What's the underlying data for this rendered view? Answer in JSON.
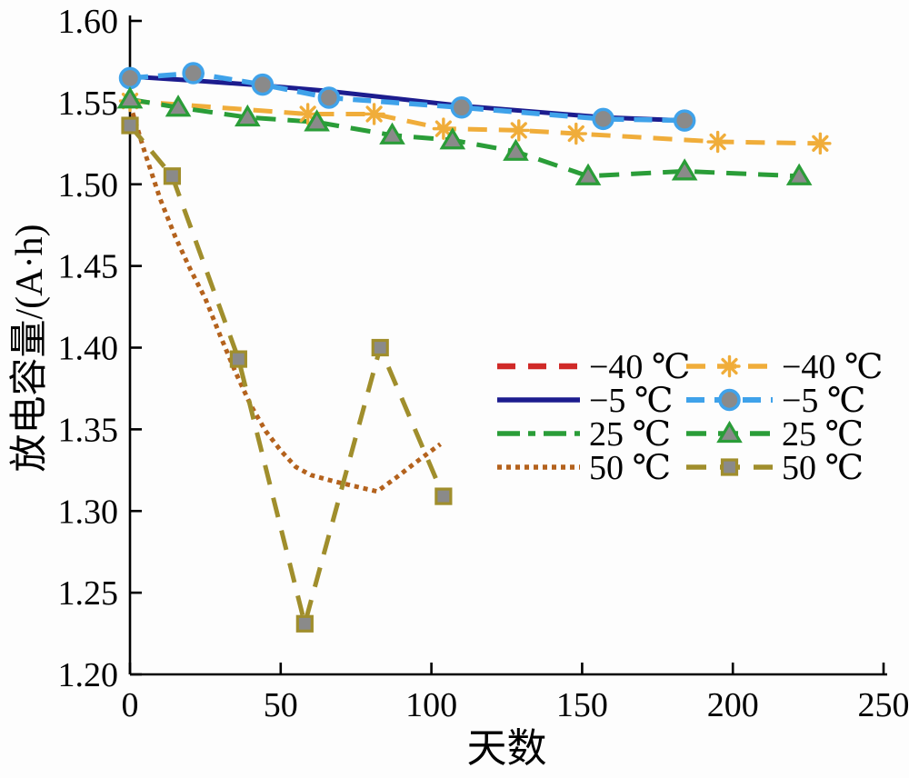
{
  "figure": {
    "kind": "scientific-line-chart",
    "background": "#fdfdfd"
  },
  "chart_data": {
    "type": "line",
    "title": "",
    "xlabel": "天数",
    "ylabel": "放电容量/(A·h)",
    "xlim": [
      0,
      250
    ],
    "ylim": [
      1.2,
      1.6
    ],
    "x_ticks": [
      0,
      50,
      100,
      150,
      200,
      250
    ],
    "x_tick_labels": [
      "0",
      "50",
      "100",
      "150",
      "200",
      "250"
    ],
    "y_ticks": [
      1.2,
      1.25,
      1.3,
      1.35,
      1.4,
      1.45,
      1.5,
      1.55,
      1.6
    ],
    "y_tick_labels": [
      "1.20",
      "1.25",
      "1.30",
      "1.35",
      "1.40",
      "1.45",
      "1.50",
      "1.55",
      "1.60"
    ],
    "grid": false,
    "legend_position": "inside middle-right, two columns, no frame",
    "marker_fill": "#8a8a8a",
    "axis_color": "#000000",
    "series": [
      {
        "id": "fit-minus40",
        "label": "−40 ℃",
        "color": "#d02a28",
        "line_style": "dashed",
        "dash": [
          20,
          14
        ],
        "width": 6,
        "marker": "none",
        "legend_col": 0,
        "legend_row": 0,
        "plotted": false,
        "x": [],
        "y": []
      },
      {
        "id": "fit-minus5",
        "label": "−5 ℃",
        "color": "#1c1c8e",
        "line_style": "solid",
        "dash": [],
        "width": 5,
        "marker": "none",
        "legend_col": 0,
        "legend_row": 1,
        "plotted": true,
        "x": [
          0,
          21,
          44,
          66,
          110,
          157,
          184
        ],
        "y": [
          1.566,
          1.5635,
          1.5605,
          1.557,
          1.548,
          1.541,
          1.539
        ]
      },
      {
        "id": "fit-25",
        "label": "25 ℃",
        "color": "#2a9d38",
        "line_style": "dash-dot",
        "dash": [
          25,
          9,
          8,
          9
        ],
        "width": 5,
        "marker": "none",
        "legend_col": 0,
        "legend_row": 2,
        "plotted": false,
        "x": [],
        "y": []
      },
      {
        "id": "fit-50",
        "label": "50 ℃",
        "color": "#b4621d",
        "line_style": "dotted",
        "dash": [
          5,
          5
        ],
        "width": 5,
        "marker": "none",
        "legend_col": 0,
        "legend_row": 3,
        "plotted": true,
        "x": [
          0,
          5,
          10,
          15,
          20,
          25,
          30,
          35,
          40,
          45,
          50,
          55,
          60,
          68,
          75,
          82,
          88,
          95,
          103
        ],
        "y": [
          1.549,
          1.519,
          1.491,
          1.468,
          1.448,
          1.43,
          1.407,
          1.385,
          1.365,
          1.349,
          1.337,
          1.327,
          1.322,
          1.318,
          1.315,
          1.312,
          1.32,
          1.33,
          1.341
        ]
      },
      {
        "id": "data-minus40",
        "label": "−40 ℃",
        "color": "#f0ad3a",
        "line_style": "dashed",
        "dash": [
          21,
          13
        ],
        "width": 5,
        "marker": "asterisk",
        "legend_col": 1,
        "legend_row": 0,
        "plotted": true,
        "x": [
          0,
          59,
          81,
          104,
          129,
          148,
          195,
          229
        ],
        "y": [
          1.551,
          1.543,
          1.543,
          1.534,
          1.533,
          1.531,
          1.526,
          1.525
        ]
      },
      {
        "id": "data-minus5",
        "label": "−5 ℃",
        "color": "#3fa2ea",
        "line_style": "dashed",
        "dash": [
          20,
          11
        ],
        "width": 5.5,
        "marker": "circle",
        "legend_col": 1,
        "legend_row": 1,
        "plotted": true,
        "x": [
          0,
          21,
          44,
          66,
          110,
          157,
          184
        ],
        "y": [
          1.565,
          1.568,
          1.561,
          1.553,
          1.547,
          1.54,
          1.539
        ]
      },
      {
        "id": "data-25",
        "label": "25 ℃",
        "color": "#2a9d38",
        "line_style": "dashed",
        "dash": [
          22,
          13
        ],
        "width": 5,
        "marker": "triangle",
        "legend_col": 1,
        "legend_row": 2,
        "plotted": true,
        "x": [
          0,
          16,
          39,
          62,
          87,
          107,
          128,
          152,
          184,
          222
        ],
        "y": [
          1.552,
          1.547,
          1.541,
          1.538,
          1.53,
          1.527,
          1.52,
          1.505,
          1.508,
          1.505
        ]
      },
      {
        "id": "data-50",
        "label": "50 ℃",
        "color": "#a08e2c",
        "line_style": "dashed",
        "dash": [
          22,
          15
        ],
        "width": 5,
        "marker": "square",
        "legend_col": 1,
        "legend_row": 3,
        "plotted": true,
        "x": [
          0,
          14,
          36,
          58,
          83,
          104
        ],
        "y": [
          1.536,
          1.505,
          1.393,
          1.231,
          1.4,
          1.309
        ]
      }
    ]
  }
}
